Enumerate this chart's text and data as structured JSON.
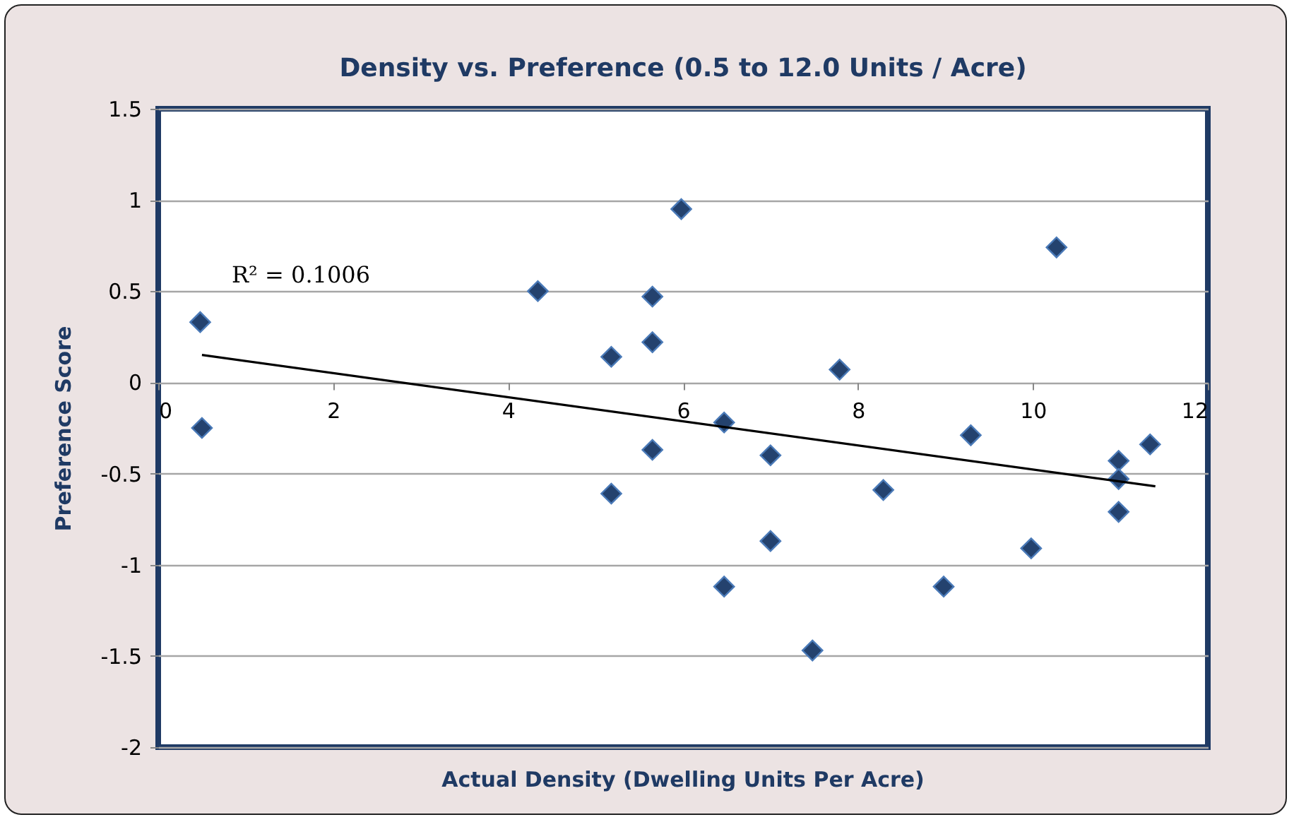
{
  "chart_data": {
    "type": "scatter",
    "title": "Density vs. Preference (0.5 to 12.0 Units / Acre)",
    "xlabel": "Actual Density (Dwelling Units  Per Acre)",
    "ylabel": "Preference Score",
    "annotations": [
      "R² = 0.1006"
    ],
    "xlim": [
      0,
      12
    ],
    "xticks": [
      0,
      2,
      4,
      6,
      8,
      10,
      12
    ],
    "ylim": [
      -2,
      1.5
    ],
    "yticks": [
      -2,
      -1.5,
      -1,
      -0.5,
      0,
      0.5,
      1,
      1.5
    ],
    "grid": "y",
    "series": [
      {
        "marker": "diamond",
        "color": "#24426e",
        "x": [
          0.48,
          0.5,
          4.34,
          5.18,
          5.65,
          5.65,
          5.98,
          5.65,
          5.18,
          6.47,
          6.47,
          7.0,
          7.0,
          7.48,
          7.79,
          8.29,
          9.29,
          8.98,
          9.98,
          10.27,
          10.98,
          10.98,
          10.98,
          11.34
        ],
        "values": [
          0.33,
          -0.25,
          0.5,
          0.14,
          0.47,
          0.22,
          0.95,
          -0.37,
          -0.61,
          -0.22,
          -1.12,
          -0.4,
          -0.87,
          -1.47,
          0.07,
          -0.59,
          -0.29,
          -1.12,
          -0.91,
          0.74,
          -0.43,
          -0.53,
          -0.71,
          -0.34
        ]
      },
      {
        "type": "line",
        "color": "#000000",
        "x": [
          0.5,
          11.4
        ],
        "values": [
          0.15,
          -0.57
        ]
      }
    ]
  }
}
